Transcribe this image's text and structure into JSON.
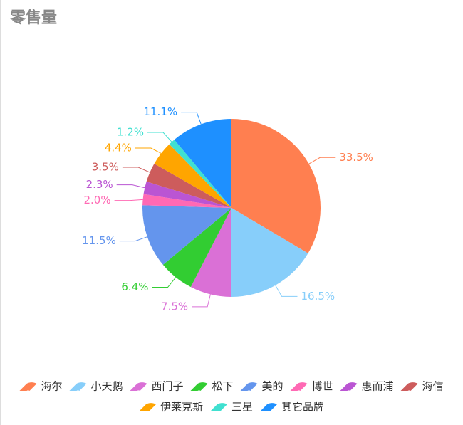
{
  "chart_data": {
    "type": "pie",
    "title": "零售量",
    "categories": [
      "海尔",
      "小天鹅",
      "西门子",
      "松下",
      "美的",
      "博世",
      "惠而浦",
      "海信",
      "伊莱克斯",
      "三星",
      "其它品牌"
    ],
    "values": [
      33.5,
      16.5,
      7.5,
      6.4,
      11.5,
      2.0,
      2.3,
      3.5,
      4.4,
      1.2,
      11.1
    ],
    "value_labels": [
      "33.5%",
      "16.5%",
      "7.5%",
      "6.4%",
      "11.5%",
      "2.0%",
      "2.3%",
      "3.5%",
      "4.4%",
      "1.2%",
      "11.1%"
    ],
    "colors": [
      "#ff7f50",
      "#87cefa",
      "#da70d6",
      "#32cd32",
      "#6495ed",
      "#ff69b4",
      "#ba55d3",
      "#cd5c5c",
      "#ffa500",
      "#40e0d0",
      "#1e90ff"
    ]
  }
}
